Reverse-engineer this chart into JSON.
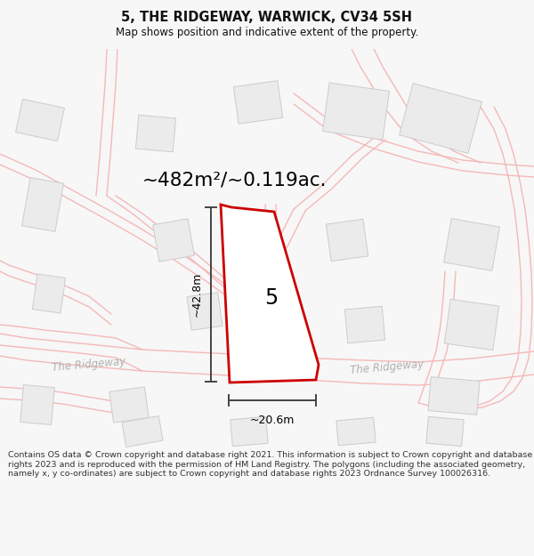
{
  "title": "5, THE RIDGEWAY, WARWICK, CV34 5SH",
  "subtitle": "Map shows position and indicative extent of the property.",
  "area_text": "~482m²/~0.119ac.",
  "plot_number": "5",
  "dim_height": "~42.8m",
  "dim_width": "~20.6m",
  "road_label1": "The Ridgeway",
  "road_label2": "The Ridgeway",
  "footer": "Contains OS data © Crown copyright and database right 2021. This information is subject to Crown copyright and database rights 2023 and is reproduced with the permission of HM Land Registry. The polygons (including the associated geometry, namely x, y co-ordinates) are subject to Crown copyright and database rights 2023 Ordnance Survey 100026316.",
  "bg_color": "#f7f7f7",
  "map_bg": "#ffffff",
  "plot_color": "#cc0000",
  "plot_fill": "#ffffff",
  "road_color": "#f5b8b8",
  "road_lw": 1.2,
  "building_color": "#ebebeb",
  "building_edge": "#cccccc",
  "dim_color": "#444444",
  "title_color": "#111111",
  "footer_color": "#333333",
  "road_label_color": "#b0b0b0"
}
